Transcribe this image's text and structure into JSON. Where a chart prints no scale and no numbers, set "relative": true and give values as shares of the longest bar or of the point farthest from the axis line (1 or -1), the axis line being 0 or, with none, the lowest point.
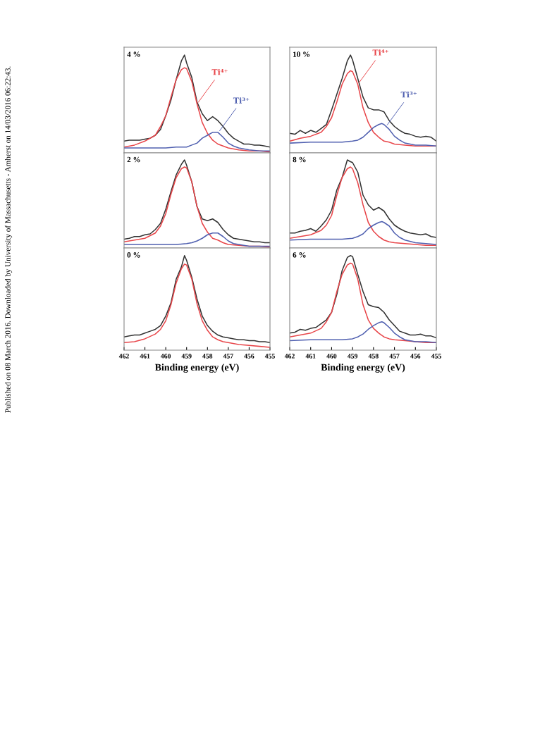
{
  "chart_data": [
    {
      "type": "line",
      "relative": true,
      "title": "4 %",
      "xlim": [
        462,
        455
      ],
      "xticks": [
        462,
        461,
        460,
        459,
        458,
        457,
        456,
        455
      ],
      "tick_labels": false,
      "annotations": [
        {
          "text": "Ti⁴⁺",
          "x": 458.5,
          "y": 0.5
        },
        {
          "text": "Ti³⁺",
          "x": 457.47,
          "y": 0.21
        },
        "Published on 08 March 2016. Downloaded by University of Massachusetts - Amherst on 14/03/2016 06:22:43."
      ],
      "x": [
        462,
        461.75,
        461.5,
        461.25,
        461,
        460.75,
        460.5,
        460.25,
        460,
        459.75,
        459.5,
        459.25,
        459.1,
        459,
        458.75,
        458.5,
        458.25,
        458,
        457.75,
        457.5,
        457.25,
        457,
        456.75,
        456.5,
        456.25,
        456,
        455.75,
        455.5,
        455.25,
        455
      ],
      "series": [
        {
          "color": "#333333",
          "values": [
            0.12,
            0.13,
            0.13,
            0.13,
            0.14,
            0.15,
            0.18,
            0.24,
            0.38,
            0.54,
            0.75,
            0.94,
            1.0,
            0.92,
            0.77,
            0.52,
            0.4,
            0.33,
            0.37,
            0.33,
            0.27,
            0.2,
            0.15,
            0.12,
            0.09,
            0.09,
            0.08,
            0.08,
            0.07,
            0.06
          ]
        },
        {
          "color": "#e8464a",
          "x": [
            462,
            461.5,
            461,
            460.5,
            460.25,
            460,
            459.75,
            459.5,
            459.25,
            459.1,
            459,
            458.75,
            458.5,
            458.25,
            458,
            457.75,
            457.5,
            457.25,
            457,
            456.5,
            456,
            455.5,
            455
          ],
          "values": [
            0.06,
            0.08,
            0.12,
            0.18,
            0.27,
            0.38,
            0.57,
            0.75,
            0.85,
            0.87,
            0.86,
            0.73,
            0.5,
            0.31,
            0.2,
            0.13,
            0.09,
            0.07,
            0.05,
            0.03,
            0.02,
            0.02,
            0.01
          ]
        },
        {
          "color": "#5060b0",
          "x": [
            462,
            461,
            460,
            459.5,
            459,
            458.75,
            458.5,
            458.25,
            458,
            457.75,
            457.6,
            457.5,
            457.25,
            457,
            456.75,
            456.5,
            456,
            455.5,
            455
          ],
          "values": [
            0.05,
            0.05,
            0.05,
            0.06,
            0.06,
            0.08,
            0.1,
            0.15,
            0.18,
            0.21,
            0.21,
            0.21,
            0.16,
            0.1,
            0.07,
            0.05,
            0.03,
            0.02,
            0.02
          ]
        }
      ]
    },
    {
      "type": "line",
      "relative": true,
      "title": "10 %",
      "xlim": [
        462,
        455
      ],
      "xticks": [
        462,
        461,
        460,
        459,
        458,
        457,
        456,
        455
      ],
      "tick_labels": false,
      "annotations": [
        {
          "text": "Ti⁴⁺",
          "x": 458.75,
          "y": 0.7
        },
        {
          "text": "Ti³⁺",
          "x": 457.4,
          "y": 0.27
        }
      ],
      "x": [
        462,
        461.75,
        461.5,
        461.25,
        461,
        460.75,
        460.5,
        460.25,
        460,
        459.75,
        459.5,
        459.25,
        459.1,
        459,
        458.75,
        458.5,
        458.25,
        458,
        457.75,
        457.5,
        457.25,
        457,
        456.75,
        456.5,
        456.25,
        456,
        455.75,
        455.5,
        455.25,
        455
      ],
      "series": [
        {
          "color": "#333333",
          "values": [
            0.2,
            0.19,
            0.23,
            0.2,
            0.23,
            0.21,
            0.25,
            0.29,
            0.44,
            0.6,
            0.76,
            0.94,
            1.0,
            0.95,
            0.76,
            0.57,
            0.46,
            0.44,
            0.44,
            0.42,
            0.33,
            0.27,
            0.23,
            0.2,
            0.19,
            0.17,
            0.16,
            0.17,
            0.16,
            0.12
          ]
        },
        {
          "color": "#e8464a",
          "x": [
            462,
            461.5,
            461,
            460.5,
            460.25,
            460,
            459.75,
            459.5,
            459.25,
            459.1,
            459,
            458.75,
            458.5,
            458.25,
            458,
            457.75,
            457.5,
            457.25,
            457,
            456.5,
            456,
            455.5,
            455
          ],
          "values": [
            0.12,
            0.15,
            0.17,
            0.21,
            0.27,
            0.36,
            0.52,
            0.7,
            0.81,
            0.84,
            0.83,
            0.7,
            0.46,
            0.31,
            0.21,
            0.16,
            0.12,
            0.11,
            0.09,
            0.08,
            0.07,
            0.07,
            0.07
          ]
        },
        {
          "color": "#5060b0",
          "x": [
            462,
            461,
            460,
            459.5,
            459,
            458.75,
            458.5,
            458.25,
            458,
            457.75,
            457.6,
            457.5,
            457.25,
            457,
            456.75,
            456.5,
            456,
            455.5,
            455
          ],
          "values": [
            0.1,
            0.11,
            0.11,
            0.11,
            0.12,
            0.13,
            0.16,
            0.21,
            0.26,
            0.29,
            0.3,
            0.29,
            0.24,
            0.17,
            0.13,
            0.1,
            0.08,
            0.08,
            0.07
          ]
        }
      ]
    },
    {
      "type": "line",
      "relative": true,
      "title": "2 %",
      "xlim": [
        462,
        455
      ],
      "xticks": [
        462,
        461,
        460,
        459,
        458,
        457,
        456,
        455
      ],
      "tick_labels": false,
      "x": [
        462,
        461.75,
        461.5,
        461.25,
        461,
        460.75,
        460.5,
        460.25,
        460,
        459.75,
        459.5,
        459.25,
        459.1,
        459,
        458.75,
        458.5,
        458.25,
        458,
        457.75,
        457.5,
        457.25,
        457,
        456.75,
        456.5,
        456.25,
        456,
        455.75,
        455.5,
        455.25,
        455
      ],
      "series": [
        {
          "color": "#333333",
          "values": [
            0.1,
            0.11,
            0.13,
            0.13,
            0.15,
            0.16,
            0.21,
            0.28,
            0.44,
            0.64,
            0.83,
            0.95,
            1.0,
            0.94,
            0.75,
            0.47,
            0.33,
            0.31,
            0.33,
            0.29,
            0.21,
            0.15,
            0.11,
            0.1,
            0.09,
            0.08,
            0.07,
            0.07,
            0.06,
            0.06
          ]
        },
        {
          "color": "#e8464a",
          "x": [
            462,
            461.5,
            461,
            460.5,
            460.25,
            460,
            459.75,
            459.5,
            459.25,
            459.1,
            459,
            458.75,
            458.5,
            458.25,
            458,
            457.75,
            457.5,
            457.25,
            457,
            456.5,
            456,
            455.5,
            455
          ],
          "values": [
            0.07,
            0.09,
            0.11,
            0.17,
            0.25,
            0.39,
            0.61,
            0.8,
            0.9,
            0.92,
            0.91,
            0.75,
            0.47,
            0.28,
            0.18,
            0.11,
            0.09,
            0.06,
            0.04,
            0.03,
            0.02,
            0.02,
            0.01
          ]
        },
        {
          "color": "#5060b0",
          "x": [
            462,
            461,
            460,
            459.5,
            459,
            458.75,
            458.5,
            458.25,
            458,
            457.75,
            457.6,
            457.5,
            457.25,
            457,
            456.75,
            456.5,
            456,
            455.5,
            455
          ],
          "values": [
            0.04,
            0.04,
            0.04,
            0.04,
            0.05,
            0.06,
            0.08,
            0.11,
            0.15,
            0.17,
            0.17,
            0.17,
            0.13,
            0.08,
            0.05,
            0.04,
            0.02,
            0.02,
            0.02
          ]
        }
      ]
    },
    {
      "type": "line",
      "relative": true,
      "title": "8 %",
      "xlim": [
        462,
        455
      ],
      "xticks": [
        462,
        461,
        460,
        459,
        458,
        457,
        456,
        455
      ],
      "tick_labels": false,
      "x": [
        462,
        461.75,
        461.5,
        461.25,
        461,
        460.75,
        460.5,
        460.25,
        460,
        459.75,
        459.5,
        459.25,
        459.1,
        459,
        458.75,
        458.5,
        458.25,
        458,
        457.75,
        457.5,
        457.25,
        457,
        456.75,
        456.5,
        456.25,
        456,
        455.75,
        455.5,
        455.25,
        455
      ],
      "series": [
        {
          "color": "#333333",
          "values": [
            0.17,
            0.17,
            0.19,
            0.2,
            0.22,
            0.19,
            0.25,
            0.32,
            0.43,
            0.66,
            0.8,
            1.0,
            0.98,
            0.97,
            0.86,
            0.6,
            0.49,
            0.43,
            0.46,
            0.42,
            0.33,
            0.26,
            0.22,
            0.19,
            0.17,
            0.16,
            0.15,
            0.16,
            0.13,
            0.12
          ]
        },
        {
          "color": "#e8464a",
          "x": [
            462,
            461.5,
            461,
            460.5,
            460.25,
            460,
            459.75,
            459.5,
            459.25,
            459.1,
            459,
            458.75,
            458.5,
            458.25,
            458,
            457.75,
            457.5,
            457.25,
            457,
            456.5,
            456,
            455.5,
            455
          ],
          "values": [
            0.11,
            0.13,
            0.15,
            0.2,
            0.26,
            0.37,
            0.6,
            0.8,
            0.9,
            0.92,
            0.9,
            0.74,
            0.49,
            0.29,
            0.19,
            0.13,
            0.09,
            0.07,
            0.06,
            0.05,
            0.04,
            0.03,
            0.03
          ]
        },
        {
          "color": "#5060b0",
          "x": [
            462,
            461,
            460,
            459.5,
            459,
            458.75,
            458.5,
            458.25,
            458,
            457.75,
            457.6,
            457.5,
            457.25,
            457,
            456.75,
            456.5,
            456,
            455.5,
            455
          ],
          "values": [
            0.09,
            0.1,
            0.1,
            0.1,
            0.11,
            0.13,
            0.16,
            0.22,
            0.26,
            0.29,
            0.3,
            0.29,
            0.25,
            0.17,
            0.12,
            0.09,
            0.06,
            0.05,
            0.04
          ]
        }
      ]
    },
    {
      "type": "line",
      "relative": true,
      "title": "0 %",
      "xlim": [
        462,
        455
      ],
      "xticks": [
        462,
        461,
        460,
        459,
        458,
        457,
        456,
        455
      ],
      "tick_labels": "x",
      "xlabel": "Binding energy (eV)",
      "x": [
        462,
        461.75,
        461.5,
        461.25,
        461,
        460.75,
        460.5,
        460.25,
        460,
        459.75,
        459.5,
        459.25,
        459.1,
        459,
        458.75,
        458.5,
        458.25,
        458,
        457.75,
        457.5,
        457.25,
        457,
        456.75,
        456.5,
        456.25,
        456,
        455.75,
        455.5,
        455.25,
        455
      ],
      "series": [
        {
          "color": "#333333",
          "values": [
            0.14,
            0.15,
            0.16,
            0.16,
            0.18,
            0.2,
            0.22,
            0.26,
            0.36,
            0.5,
            0.75,
            0.88,
            1.0,
            0.95,
            0.77,
            0.54,
            0.36,
            0.26,
            0.2,
            0.16,
            0.14,
            0.13,
            0.12,
            0.11,
            0.11,
            0.1,
            0.1,
            0.09,
            0.09,
            0.08
          ]
        },
        {
          "color": "#e8464a",
          "x": [
            462,
            461.5,
            461,
            460.5,
            460.25,
            460,
            459.75,
            459.5,
            459.25,
            459.1,
            459,
            458.75,
            458.5,
            458.25,
            458,
            457.75,
            457.5,
            457.25,
            457,
            456.5,
            456,
            455.5,
            455
          ],
          "values": [
            0.08,
            0.09,
            0.12,
            0.17,
            0.22,
            0.31,
            0.48,
            0.71,
            0.86,
            0.91,
            0.9,
            0.75,
            0.49,
            0.31,
            0.21,
            0.14,
            0.11,
            0.09,
            0.08,
            0.06,
            0.05,
            0.04,
            0.03
          ]
        }
      ]
    },
    {
      "type": "line",
      "relative": true,
      "title": "6 %",
      "xlim": [
        462,
        455
      ],
      "xticks": [
        462,
        461,
        460,
        459,
        458,
        457,
        456,
        455
      ],
      "tick_labels": "x",
      "xlabel": "Binding energy (eV)",
      "x": [
        462,
        461.75,
        461.5,
        461.25,
        461,
        460.75,
        460.5,
        460.25,
        460,
        459.75,
        459.5,
        459.25,
        459.1,
        459,
        458.75,
        458.5,
        458.25,
        458,
        457.75,
        457.5,
        457.25,
        457,
        456.75,
        456.5,
        456.25,
        456,
        455.75,
        455.5,
        455.25,
        455
      ],
      "series": [
        {
          "color": "#333333",
          "values": [
            0.18,
            0.19,
            0.22,
            0.21,
            0.23,
            0.24,
            0.28,
            0.32,
            0.4,
            0.59,
            0.84,
            0.98,
            1.0,
            0.99,
            0.8,
            0.62,
            0.48,
            0.46,
            0.45,
            0.4,
            0.32,
            0.26,
            0.2,
            0.18,
            0.16,
            0.16,
            0.17,
            0.15,
            0.15,
            0.13
          ]
        },
        {
          "color": "#e8464a",
          "x": [
            462,
            461.5,
            461,
            460.5,
            460.25,
            460,
            459.75,
            459.5,
            459.25,
            459.1,
            459,
            458.75,
            458.5,
            458.25,
            458,
            457.75,
            457.5,
            457.25,
            457,
            456.5,
            456,
            455.5,
            455
          ],
          "values": [
            0.14,
            0.16,
            0.18,
            0.23,
            0.3,
            0.4,
            0.62,
            0.8,
            0.9,
            0.92,
            0.91,
            0.75,
            0.48,
            0.32,
            0.23,
            0.18,
            0.14,
            0.12,
            0.11,
            0.1,
            0.09,
            0.08,
            0.08
          ]
        },
        {
          "color": "#5060b0",
          "x": [
            462,
            461,
            460,
            459.5,
            459,
            458.75,
            458.5,
            458.25,
            458,
            457.75,
            457.6,
            457.5,
            457.25,
            457,
            456.75,
            456.5,
            456,
            455.5,
            455
          ],
          "values": [
            0.1,
            0.11,
            0.11,
            0.11,
            0.12,
            0.14,
            0.17,
            0.22,
            0.26,
            0.29,
            0.3,
            0.29,
            0.24,
            0.18,
            0.14,
            0.11,
            0.09,
            0.09,
            0.08
          ]
        }
      ]
    }
  ]
}
